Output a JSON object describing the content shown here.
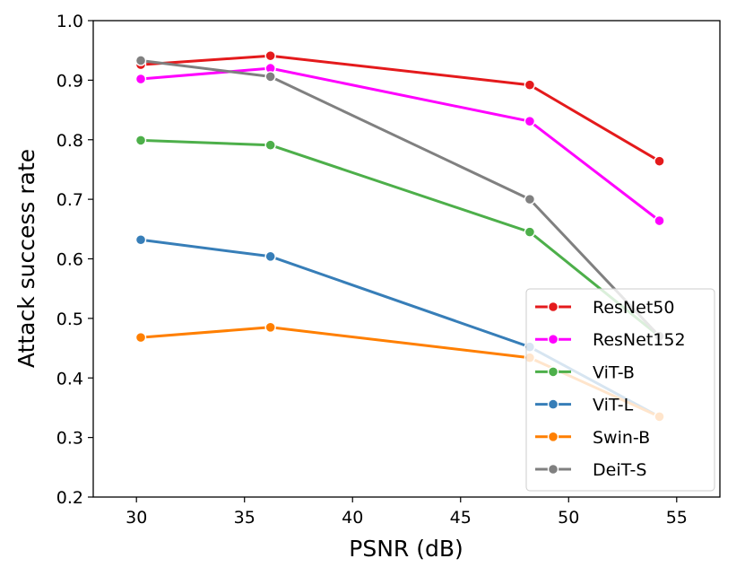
{
  "chart_data": {
    "type": "line",
    "title": "",
    "xlabel": "PSNR (dB)",
    "ylabel": "Attack success rate",
    "xlim": [
      28,
      57
    ],
    "ylim": [
      0.2,
      1.0
    ],
    "xticks": [
      30,
      35,
      40,
      45,
      50,
      55
    ],
    "yticks": [
      0.2,
      0.3,
      0.4,
      0.5,
      0.6,
      0.7,
      0.8,
      0.9,
      1.0
    ],
    "x": [
      30.2,
      36.2,
      48.2,
      54.2
    ],
    "grid": false,
    "legend_position": "bottom-right",
    "series": [
      {
        "name": "ResNet50",
        "color": "#e41a1c",
        "values": [
          0.926,
          0.941,
          0.892,
          0.764
        ]
      },
      {
        "name": "ResNet152",
        "color": "#ff00ff",
        "values": [
          0.902,
          0.92,
          0.831,
          0.664
        ]
      },
      {
        "name": "ViT-B",
        "color": "#4daf4a",
        "values": [
          0.799,
          0.791,
          0.645,
          0.47
        ]
      },
      {
        "name": "ViT-L",
        "color": "#377eb8",
        "values": [
          0.632,
          0.604,
          0.452,
          0.335
        ]
      },
      {
        "name": "Swin-B",
        "color": "#ff7f00",
        "values": [
          0.468,
          0.485,
          0.434,
          0.335
        ]
      },
      {
        "name": "DeiT-S",
        "color": "#808080",
        "values": [
          0.933,
          0.906,
          0.7,
          0.47
        ]
      }
    ]
  }
}
